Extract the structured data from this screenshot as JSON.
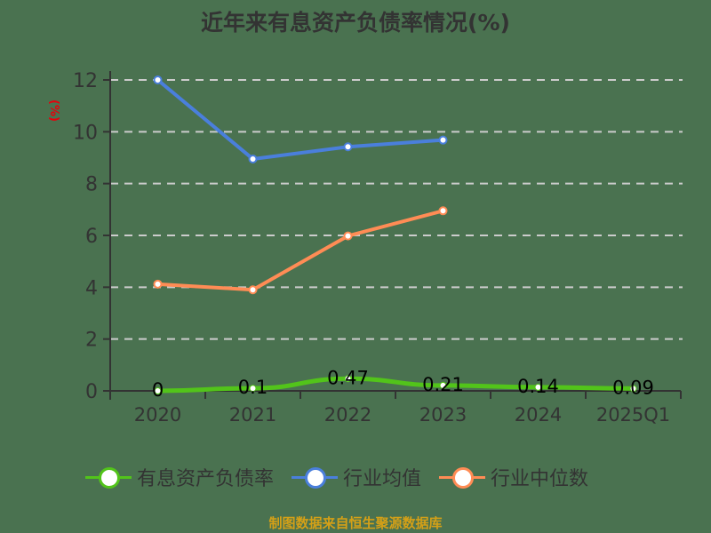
{
  "title": "近年来有息资产负债率情况(%)",
  "y_unit_label": "(%)",
  "footer": "制图数据来自恒生聚源数据库",
  "legend": [
    {
      "label": "有息资产负债率",
      "color": "#52c41a"
    },
    {
      "label": "行业均值",
      "color": "#4a7fdc"
    },
    {
      "label": "行业中位数",
      "color": "#ff8c55"
    }
  ],
  "colors": {
    "background": "#4a7250",
    "axis": "#333333",
    "grid": "#cccccc",
    "title": "#333333",
    "y_unit": "#e8000b",
    "footer": "#d4a017"
  },
  "chart_data": {
    "type": "line",
    "title": "近年来有息资产负债率情况(%)",
    "xlabel": "",
    "ylabel": "(%)",
    "categories": [
      "2020",
      "2021",
      "2022",
      "2023",
      "2024",
      "2025Q1"
    ],
    "ylim": [
      0,
      12
    ],
    "yticks": [
      0,
      2,
      4,
      6,
      8,
      10,
      12
    ],
    "grid": true,
    "legend_position": "bottom",
    "series": [
      {
        "name": "有息资产负债率",
        "color": "#52c41a",
        "values": [
          0,
          0.1,
          0.47,
          0.21,
          0.14,
          0.09
        ],
        "data_labels": [
          "0",
          "0.1",
          "0.47",
          "0.21",
          "0.14",
          "0.09"
        ]
      },
      {
        "name": "行业均值",
        "color": "#4a7fdc",
        "values": [
          12.0,
          8.95,
          9.42,
          9.68,
          null,
          null
        ]
      },
      {
        "name": "行业中位数",
        "color": "#ff8c55",
        "values": [
          4.12,
          3.9,
          5.98,
          6.95,
          null,
          null
        ]
      }
    ]
  }
}
